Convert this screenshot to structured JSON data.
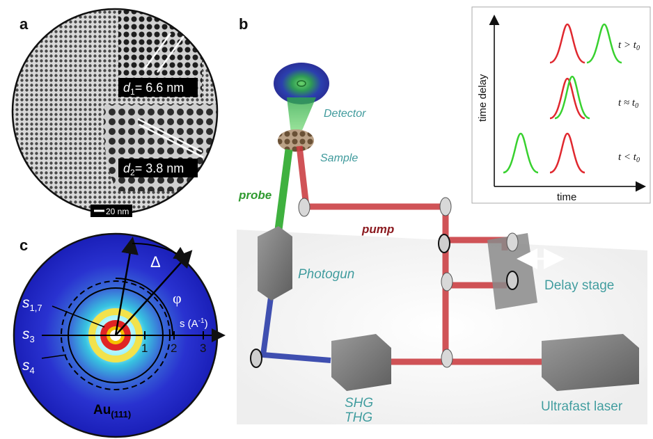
{
  "panels": {
    "a": {
      "letter": "a",
      "d1_label": "d",
      "d1_sub": "1",
      "d1_value": "= 6.6 nm",
      "d2_label": "d",
      "d2_sub": "2",
      "d2_value": "= 3.8 nm",
      "scalebar": "20 nm"
    },
    "b": {
      "letter": "b",
      "detector": "Detector",
      "sample": "Sample",
      "probe": "probe",
      "pump": "pump",
      "photogun": "Photogun",
      "delay_stage": "Delay stage",
      "shg": "SHG",
      "thg": "THG",
      "laser": "Ultrafast laser",
      "inset": {
        "ylabel": "time delay",
        "xlabel": "time",
        "row_top": "t > t",
        "row_mid": "t ≈ t",
        "row_bot": "t < t",
        "sub0": "0"
      }
    },
    "c": {
      "letter": "c",
      "delta": "Δ",
      "phi": "φ",
      "s_axis": "s (A",
      "s_axis_sup": "-1",
      "s_axis_end": ")",
      "s17": "s",
      "s17_sub": "1,7",
      "s3": "s",
      "s3_sub": "3",
      "s4": "s",
      "s4_sub": "4",
      "tick1": "1",
      "tick2": "2",
      "tick3": "3",
      "au": "Au",
      "au_sub": "(111)"
    }
  },
  "colors": {
    "red_beam": "#c8353a",
    "green_beam": "#3fb13f",
    "blue_beam": "#3f4fb0",
    "teal_label": "#3f9a9c",
    "diffraction_bg": "#1c21c8"
  }
}
